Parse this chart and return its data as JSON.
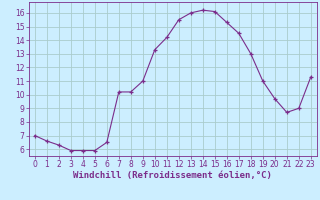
{
  "x": [
    0,
    1,
    2,
    3,
    4,
    5,
    6,
    7,
    8,
    9,
    10,
    11,
    12,
    13,
    14,
    15,
    16,
    17,
    18,
    19,
    20,
    21,
    22,
    23
  ],
  "y": [
    7.0,
    6.6,
    6.3,
    5.9,
    5.9,
    5.9,
    6.5,
    10.2,
    10.2,
    11.0,
    13.3,
    14.2,
    15.5,
    16.0,
    16.2,
    16.1,
    15.3,
    14.5,
    13.0,
    11.0,
    9.7,
    8.7,
    9.0,
    11.3
  ],
  "line_color": "#7b2d8b",
  "marker_color": "#7b2d8b",
  "background_color": "#cceeff",
  "grid_color": "#aacccc",
  "xlabel": "Windchill (Refroidissement éolien,°C)",
  "xlabel_color": "#7b2d8b",
  "ylim": [
    5.5,
    16.8
  ],
  "xlim": [
    -0.5,
    23.5
  ],
  "yticks": [
    6,
    7,
    8,
    9,
    10,
    11,
    12,
    13,
    14,
    15,
    16
  ],
  "xticks": [
    0,
    1,
    2,
    3,
    4,
    5,
    6,
    7,
    8,
    9,
    10,
    11,
    12,
    13,
    14,
    15,
    16,
    17,
    18,
    19,
    20,
    21,
    22,
    23
  ],
  "tick_fontsize": 5.5,
  "xlabel_fontsize": 6.5
}
